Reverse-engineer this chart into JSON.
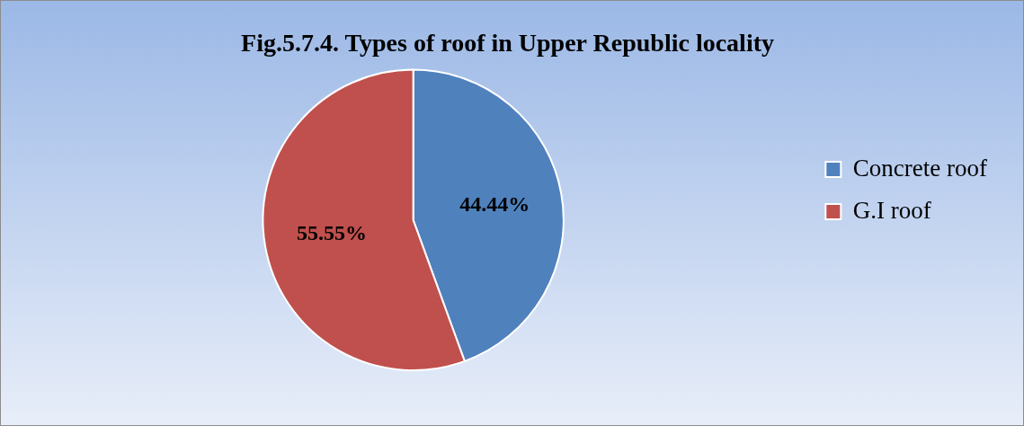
{
  "chart_data": {
    "type": "pie",
    "title": "Fig.5.7.4. Types of roof in Upper Republic locality",
    "categories": [
      "Concrete roof",
      "G.I roof"
    ],
    "values": [
      44.44,
      55.55
    ],
    "colors": [
      "#4f81bd",
      "#c0504d"
    ],
    "value_labels": [
      "44.44%",
      "55.55%"
    ],
    "legend": "right"
  }
}
